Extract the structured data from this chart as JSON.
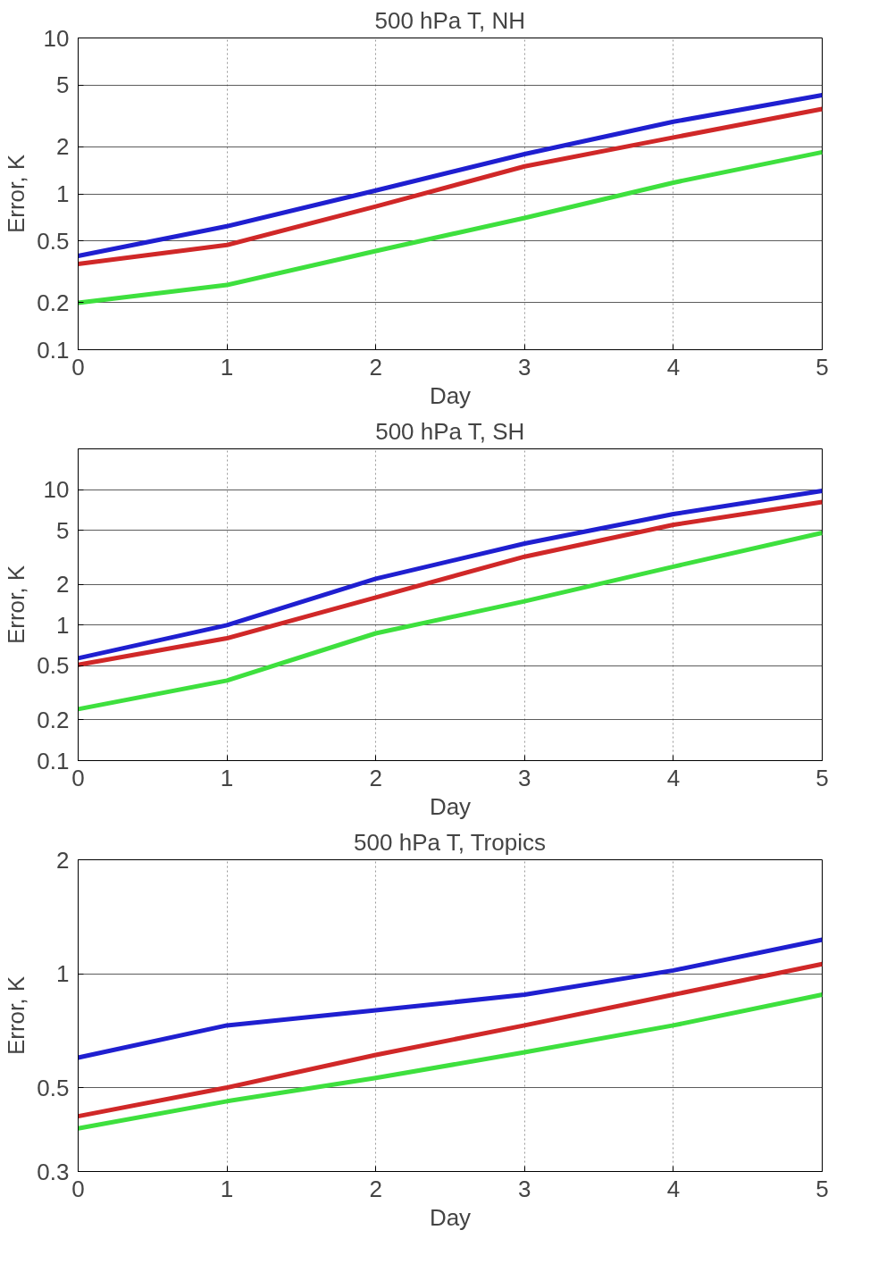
{
  "chart_data": [
    {
      "type": "line",
      "title": "500 hPa T, NH",
      "xlabel": "Day",
      "ylabel": "Error, K",
      "x": [
        0,
        1,
        2,
        3,
        4,
        5
      ],
      "log": "y",
      "xlim": [
        0,
        5
      ],
      "ylim": [
        0.1,
        10
      ],
      "xticks": [
        0,
        1,
        2,
        3,
        4,
        5
      ],
      "yticks": [
        0.1,
        0.2,
        0.5,
        1,
        2,
        5,
        10
      ],
      "grid": true,
      "marker": "none",
      "line_style": "solid",
      "series": [
        {
          "color": "#1f1fd0",
          "values": [
            0.4,
            0.62,
            1.05,
            1.8,
            2.9,
            4.3
          ]
        },
        {
          "color": "#d02828",
          "values": [
            0.355,
            0.47,
            0.83,
            1.5,
            2.3,
            3.5
          ]
        },
        {
          "color": "#3ee03e",
          "values": [
            0.2,
            0.26,
            0.43,
            0.7,
            1.18,
            1.85
          ]
        }
      ]
    },
    {
      "type": "line",
      "title": "500 hPa T, SH",
      "xlabel": "Day",
      "ylabel": "Error, K",
      "x": [
        0,
        1,
        2,
        3,
        4,
        5
      ],
      "log": "y",
      "xlim": [
        0,
        5
      ],
      "ylim": [
        0.1,
        20
      ],
      "xticks": [
        0,
        1,
        2,
        3,
        4,
        5
      ],
      "yticks": [
        0.1,
        0.2,
        0.5,
        1,
        2,
        5,
        10
      ],
      "grid": true,
      "marker": "none",
      "line_style": "solid",
      "series": [
        {
          "color": "#1f1fd0",
          "values": [
            0.57,
            1.0,
            2.2,
            4.0,
            6.6,
            9.8
          ]
        },
        {
          "color": "#d02828",
          "values": [
            0.51,
            0.8,
            1.6,
            3.2,
            5.5,
            8.1
          ]
        },
        {
          "color": "#3ee03e",
          "values": [
            0.24,
            0.39,
            0.87,
            1.5,
            2.7,
            4.8
          ]
        }
      ]
    },
    {
      "type": "line",
      "title": "500 hPa T, Tropics",
      "xlabel": "Day",
      "ylabel": "Error, K",
      "x": [
        0,
        1,
        2,
        3,
        4,
        5
      ],
      "log": "y",
      "xlim": [
        0,
        5
      ],
      "ylim": [
        0.3,
        2
      ],
      "xticks": [
        0,
        1,
        2,
        3,
        4,
        5
      ],
      "yticks": [
        0.3,
        0.5,
        1,
        2
      ],
      "grid": true,
      "marker": "none",
      "line_style": "solid",
      "series": [
        {
          "color": "#1f1fd0",
          "values": [
            0.6,
            0.73,
            0.8,
            0.88,
            1.02,
            1.23
          ]
        },
        {
          "color": "#d02828",
          "values": [
            0.42,
            0.5,
            0.61,
            0.73,
            0.88,
            1.06
          ]
        },
        {
          "color": "#3ee03e",
          "values": [
            0.39,
            0.46,
            0.53,
            0.62,
            0.73,
            0.88
          ]
        }
      ]
    }
  ]
}
